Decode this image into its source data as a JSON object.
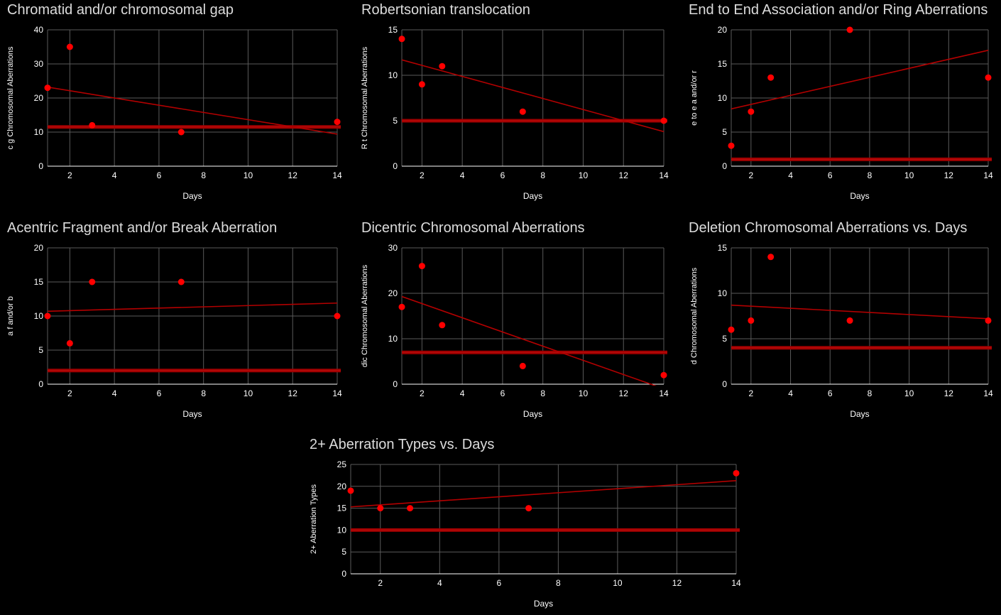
{
  "chart_data": [
    {
      "type": "scatter",
      "title": "Chromatid and/or chromosomal gap",
      "xlabel": "Days",
      "ylabel": "c g Chromosomal Aberrations",
      "xlim": [
        1,
        14
      ],
      "ylim": [
        0,
        40
      ],
      "xticks": [
        2,
        4,
        6,
        8,
        10,
        12,
        14
      ],
      "yticks": [
        0,
        10,
        20,
        30,
        40
      ],
      "x": [
        1,
        2,
        3,
        7,
        14
      ],
      "y": [
        23,
        35,
        12,
        10,
        13
      ],
      "trendline": [
        23.2,
        9.4
      ],
      "baseline": 11.5,
      "grid": true,
      "colors": {
        "points": "#ff0000",
        "trend": "#b30000",
        "baseline": "#a00000"
      }
    },
    {
      "type": "scatter",
      "title": "Robertsonian translocation",
      "xlabel": "Days",
      "ylabel": "R t Chromosomal Aberrations",
      "xlim": [
        1,
        14
      ],
      "ylim": [
        0,
        15
      ],
      "xticks": [
        2,
        4,
        6,
        8,
        10,
        12,
        14
      ],
      "yticks": [
        0,
        5,
        10,
        15
      ],
      "x": [
        1,
        2,
        3,
        7,
        14
      ],
      "y": [
        14,
        9,
        11,
        6,
        5
      ],
      "trendline": [
        11.7,
        3.8
      ],
      "baseline": 5,
      "grid": true,
      "colors": {
        "points": "#ff0000",
        "trend": "#b30000",
        "baseline": "#a00000"
      }
    },
    {
      "type": "scatter",
      "title": "End to End Association and/or Ring Aberrations",
      "xlabel": "Days",
      "ylabel": "e to e a and/or r",
      "xlim": [
        1,
        14
      ],
      "ylim": [
        0,
        20
      ],
      "xticks": [
        2,
        4,
        6,
        8,
        10,
        12,
        14
      ],
      "yticks": [
        0,
        5,
        10,
        15,
        20
      ],
      "x": [
        1,
        2,
        3,
        7,
        14
      ],
      "y": [
        3,
        8,
        13,
        20,
        13
      ],
      "trendline": [
        8.4,
        17
      ],
      "baseline": 1,
      "grid": true,
      "colors": {
        "points": "#ff0000",
        "trend": "#b30000",
        "baseline": "#a00000"
      }
    },
    {
      "type": "scatter",
      "title": "Acentric Fragment and/or Break Aberration",
      "xlabel": "Days",
      "ylabel": "a f and/or b",
      "xlim": [
        1,
        14
      ],
      "ylim": [
        0,
        20
      ],
      "xticks": [
        2,
        4,
        6,
        8,
        10,
        12,
        14
      ],
      "yticks": [
        0,
        5,
        10,
        15,
        20
      ],
      "x": [
        1,
        2,
        3,
        7,
        14
      ],
      "y": [
        10,
        6,
        15,
        15,
        10
      ],
      "trendline": [
        10.7,
        11.9
      ],
      "baseline": 2,
      "grid": true,
      "colors": {
        "points": "#ff0000",
        "trend": "#b30000",
        "baseline": "#a00000"
      }
    },
    {
      "type": "scatter",
      "title": "Dicentric Chromosomal Aberrations",
      "xlabel": "Days",
      "ylabel": "dic Chromosomal Aberrations",
      "xlim": [
        1,
        14
      ],
      "ylim": [
        0,
        30
      ],
      "xticks": [
        2,
        4,
        6,
        8,
        10,
        12,
        14
      ],
      "yticks": [
        0,
        10,
        20,
        30
      ],
      "x": [
        1,
        2,
        3,
        7,
        14
      ],
      "y": [
        17,
        26,
        13,
        4,
        2
      ],
      "trendline": [
        19.3,
        -1
      ],
      "baseline": 7,
      "grid": true,
      "colors": {
        "points": "#ff0000",
        "trend": "#b30000",
        "baseline": "#a00000"
      }
    },
    {
      "type": "scatter",
      "title": "Deletion Chromosomal Aberrations vs. Days",
      "xlabel": "Days",
      "ylabel": "d Chromosomal Aberrations",
      "xlim": [
        1,
        14
      ],
      "ylim": [
        0,
        15
      ],
      "xticks": [
        2,
        4,
        6,
        8,
        10,
        12,
        14
      ],
      "yticks": [
        0,
        5,
        10,
        15
      ],
      "x": [
        1,
        2,
        3,
        7,
        14
      ],
      "y": [
        6,
        7,
        14,
        7,
        7
      ],
      "trendline": [
        8.7,
        7.2
      ],
      "baseline": 4,
      "grid": true,
      "colors": {
        "points": "#ff0000",
        "trend": "#b30000",
        "baseline": "#a00000"
      }
    },
    {
      "type": "scatter",
      "title": "2+ Aberration Types vs. Days",
      "xlabel": "Days",
      "ylabel": "2+ Aberration Types",
      "xlim": [
        1,
        14
      ],
      "ylim": [
        0,
        25
      ],
      "xticks": [
        2,
        4,
        6,
        8,
        10,
        12,
        14
      ],
      "yticks": [
        0,
        5,
        10,
        15,
        20,
        25
      ],
      "x": [
        1,
        2,
        3,
        7,
        14
      ],
      "y": [
        19,
        15,
        15,
        15,
        23
      ],
      "trendline": [
        15.3,
        21.3
      ],
      "baseline": 10,
      "grid": true,
      "colors": {
        "points": "#ff0000",
        "trend": "#b30000",
        "baseline": "#a00000"
      }
    }
  ]
}
